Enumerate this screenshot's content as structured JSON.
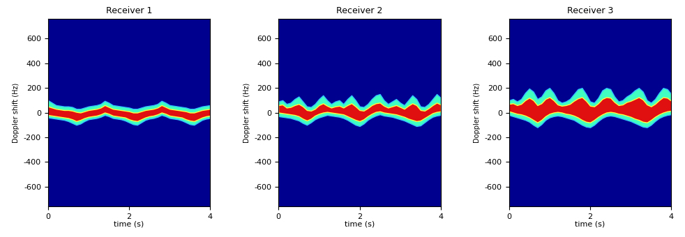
{
  "chart_data": [
    {
      "type": "band",
      "title": "Receiver 1",
      "x_label": "time (s)",
      "y_label": "Doppler shift (Hz)",
      "color": "#00008f",
      "x": [
        0,
        0.1,
        0.2,
        0.3,
        0.4,
        0.5,
        0.6,
        0.7,
        0.8,
        0.9,
        1.0,
        1.1,
        1.2,
        1.3,
        1.4,
        1.5,
        1.6,
        1.7,
        1.8,
        1.9,
        2.0,
        2.1,
        2.2,
        2.3,
        2.4,
        2.5,
        2.6,
        2.7,
        2.8,
        2.9,
        3.0,
        3.1,
        3.2,
        3.3,
        3.4,
        3.5,
        3.6,
        3.7,
        3.8,
        3.9,
        4.0
      ],
      "xlim": [
        0,
        4
      ],
      "xticks": [
        0,
        2,
        4
      ],
      "ylim": [
        -760,
        760
      ],
      "yticks": [
        -600,
        -400,
        -200,
        0,
        200,
        400,
        600
      ],
      "series": [
        {
          "color": "#40ffc0",
          "upper": [
            100,
            80,
            60,
            55,
            50,
            50,
            45,
            30,
            30,
            40,
            50,
            55,
            60,
            70,
            95,
            80,
            60,
            55,
            50,
            45,
            40,
            30,
            30,
            40,
            50,
            55,
            60,
            70,
            95,
            80,
            60,
            55,
            50,
            45,
            40,
            30,
            30,
            40,
            50,
            55,
            60
          ],
          "lower": [
            -40,
            -45,
            -50,
            -55,
            -60,
            -70,
            -85,
            -100,
            -90,
            -70,
            -55,
            -50,
            -45,
            -35,
            -20,
            -30,
            -45,
            -50,
            -55,
            -65,
            -80,
            -95,
            -100,
            -80,
            -60,
            -50,
            -45,
            -35,
            -20,
            -30,
            -45,
            -50,
            -55,
            -65,
            -80,
            -95,
            -100,
            -80,
            -60,
            -50,
            -45
          ]
        },
        {
          "color": "#e01010",
          "upper": [
            50,
            40,
            30,
            25,
            20,
            20,
            15,
            5,
            0,
            10,
            20,
            25,
            30,
            40,
            60,
            45,
            30,
            25,
            20,
            15,
            10,
            0,
            0,
            10,
            20,
            25,
            30,
            40,
            60,
            45,
            30,
            25,
            20,
            15,
            10,
            0,
            0,
            10,
            20,
            25,
            30
          ],
          "lower": [
            -20,
            -25,
            -30,
            -35,
            -40,
            -45,
            -55,
            -70,
            -60,
            -45,
            -35,
            -30,
            -25,
            -15,
            0,
            -10,
            -25,
            -30,
            -35,
            -40,
            -55,
            -65,
            -70,
            -55,
            -40,
            -30,
            -25,
            -15,
            0,
            -10,
            -25,
            -30,
            -35,
            -40,
            -55,
            -65,
            -70,
            -55,
            -40,
            -30,
            -25
          ]
        }
      ]
    },
    {
      "type": "band",
      "title": "Receiver 2",
      "x_label": "time (s)",
      "y_label": "Doppler shift (Hz)",
      "color": "#00008f",
      "x": [
        0,
        0.1,
        0.2,
        0.3,
        0.4,
        0.5,
        0.6,
        0.7,
        0.8,
        0.9,
        1.0,
        1.1,
        1.2,
        1.3,
        1.4,
        1.5,
        1.6,
        1.7,
        1.8,
        1.9,
        2.0,
        2.1,
        2.2,
        2.3,
        2.4,
        2.5,
        2.6,
        2.7,
        2.8,
        2.9,
        3.0,
        3.1,
        3.2,
        3.3,
        3.4,
        3.5,
        3.6,
        3.7,
        3.8,
        3.9,
        4.0
      ],
      "xlim": [
        0,
        4
      ],
      "xticks": [
        0,
        2,
        4
      ],
      "ylim": [
        -760,
        760
      ],
      "yticks": [
        -600,
        -400,
        -200,
        0,
        200,
        400,
        600
      ],
      "series": [
        {
          "color": "#40ffc0",
          "upper": [
            90,
            100,
            70,
            80,
            110,
            130,
            90,
            50,
            45,
            70,
            110,
            140,
            100,
            70,
            90,
            100,
            70,
            110,
            140,
            100,
            50,
            45,
            70,
            110,
            140,
            150,
            100,
            70,
            90,
            110,
            80,
            60,
            100,
            140,
            110,
            50,
            45,
            70,
            110,
            150,
            120
          ],
          "lower": [
            -30,
            -35,
            -40,
            -45,
            -55,
            -65,
            -85,
            -100,
            -80,
            -55,
            -40,
            -30,
            -20,
            -25,
            -30,
            -35,
            -45,
            -60,
            -80,
            -100,
            -110,
            -90,
            -60,
            -40,
            -25,
            -15,
            -25,
            -30,
            -35,
            -45,
            -55,
            -65,
            -80,
            -95,
            -110,
            -105,
            -80,
            -55,
            -35,
            -25,
            -20
          ]
        },
        {
          "color": "#e01010",
          "upper": [
            60,
            65,
            40,
            45,
            60,
            70,
            50,
            20,
            15,
            30,
            60,
            75,
            55,
            40,
            50,
            55,
            40,
            60,
            75,
            50,
            20,
            15,
            35,
            60,
            75,
            80,
            55,
            40,
            50,
            60,
            45,
            30,
            55,
            75,
            60,
            20,
            15,
            35,
            60,
            80,
            65
          ],
          "lower": [
            0,
            -5,
            -10,
            -15,
            -20,
            -30,
            -50,
            -65,
            -50,
            -25,
            -10,
            0,
            5,
            0,
            -5,
            -10,
            -15,
            -30,
            -45,
            -60,
            -70,
            -55,
            -30,
            -10,
            5,
            10,
            0,
            -5,
            -10,
            -15,
            -25,
            -35,
            -50,
            -60,
            -70,
            -65,
            -45,
            -25,
            -5,
            5,
            10
          ]
        }
      ]
    },
    {
      "type": "band",
      "title": "Receiver 3",
      "x_label": "time (s)",
      "y_label": "Doppler shift (Hz)",
      "color": "#00008f",
      "x": [
        0,
        0.1,
        0.2,
        0.3,
        0.4,
        0.5,
        0.6,
        0.7,
        0.8,
        0.9,
        1.0,
        1.1,
        1.2,
        1.3,
        1.4,
        1.5,
        1.6,
        1.7,
        1.8,
        1.9,
        2.0,
        2.1,
        2.2,
        2.3,
        2.4,
        2.5,
        2.6,
        2.7,
        2.8,
        2.9,
        3.0,
        3.1,
        3.2,
        3.3,
        3.4,
        3.5,
        3.6,
        3.7,
        3.8,
        3.9,
        4.0
      ],
      "xlim": [
        0,
        4
      ],
      "xticks": [
        0,
        2,
        4
      ],
      "ylim": [
        -760,
        760
      ],
      "yticks": [
        -600,
        -400,
        -200,
        0,
        200,
        400,
        600
      ],
      "series": [
        {
          "color": "#40ffc0",
          "upper": [
            100,
            110,
            90,
            110,
            160,
            195,
            170,
            110,
            130,
            180,
            200,
            160,
            100,
            80,
            90,
            110,
            150,
            190,
            200,
            150,
            90,
            80,
            120,
            180,
            200,
            190,
            130,
            90,
            100,
            130,
            150,
            180,
            200,
            170,
            100,
            80,
            110,
            160,
            200,
            190,
            150
          ],
          "lower": [
            -20,
            -30,
            -40,
            -50,
            -60,
            -75,
            -100,
            -120,
            -95,
            -60,
            -40,
            -30,
            -25,
            -30,
            -40,
            -50,
            -60,
            -80,
            -100,
            -115,
            -120,
            -100,
            -70,
            -45,
            -30,
            -25,
            -30,
            -40,
            -50,
            -60,
            -70,
            -85,
            -100,
            -115,
            -120,
            -100,
            -70,
            -45,
            -30,
            -20,
            -15
          ]
        },
        {
          "color": "#e01010",
          "upper": [
            70,
            75,
            60,
            70,
            100,
            120,
            100,
            60,
            75,
            110,
            125,
            100,
            65,
            55,
            60,
            70,
            95,
            115,
            125,
            95,
            55,
            50,
            75,
            110,
            125,
            120,
            85,
            60,
            65,
            85,
            95,
            110,
            125,
            105,
            65,
            50,
            70,
            100,
            125,
            120,
            95
          ],
          "lower": [
            10,
            0,
            -10,
            -15,
            -25,
            -40,
            -60,
            -80,
            -60,
            -30,
            -10,
            0,
            5,
            0,
            -10,
            -15,
            -25,
            -40,
            -60,
            -75,
            -80,
            -60,
            -35,
            -15,
            0,
            5,
            0,
            -10,
            -15,
            -25,
            -35,
            -50,
            -60,
            -75,
            -80,
            -60,
            -35,
            -15,
            0,
            10,
            15
          ]
        }
      ]
    }
  ]
}
